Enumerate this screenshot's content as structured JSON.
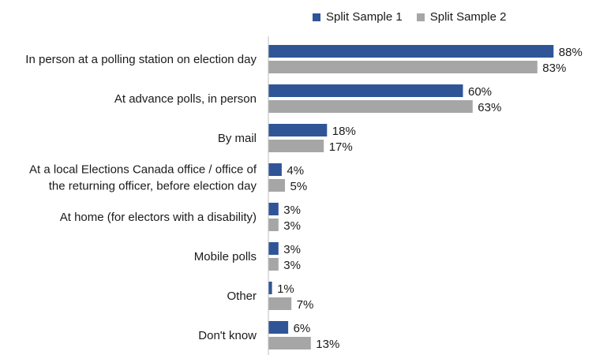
{
  "chart_data": {
    "type": "bar",
    "orientation": "horizontal",
    "categories": [
      [
        "In person at a polling station on election day"
      ],
      [
        "At advance polls, in person"
      ],
      [
        "By mail"
      ],
      [
        "At a local Elections Canada office / office of",
        "the returning officer, before election day"
      ],
      [
        "At home (for electors with a disability)"
      ],
      [
        "Mobile polls"
      ],
      [
        "Other"
      ],
      [
        "Don't know"
      ]
    ],
    "series": [
      {
        "name": "Split Sample 1",
        "color": "#2f5597",
        "values": [
          88,
          60,
          18,
          4,
          3,
          3,
          1,
          6
        ]
      },
      {
        "name": "Split Sample 2",
        "color": "#a6a6a6",
        "values": [
          83,
          63,
          17,
          5,
          3,
          3,
          7,
          13
        ]
      }
    ],
    "value_suffix": "%",
    "xlim": [
      0,
      90
    ],
    "grid": false,
    "legend_position": "top"
  }
}
